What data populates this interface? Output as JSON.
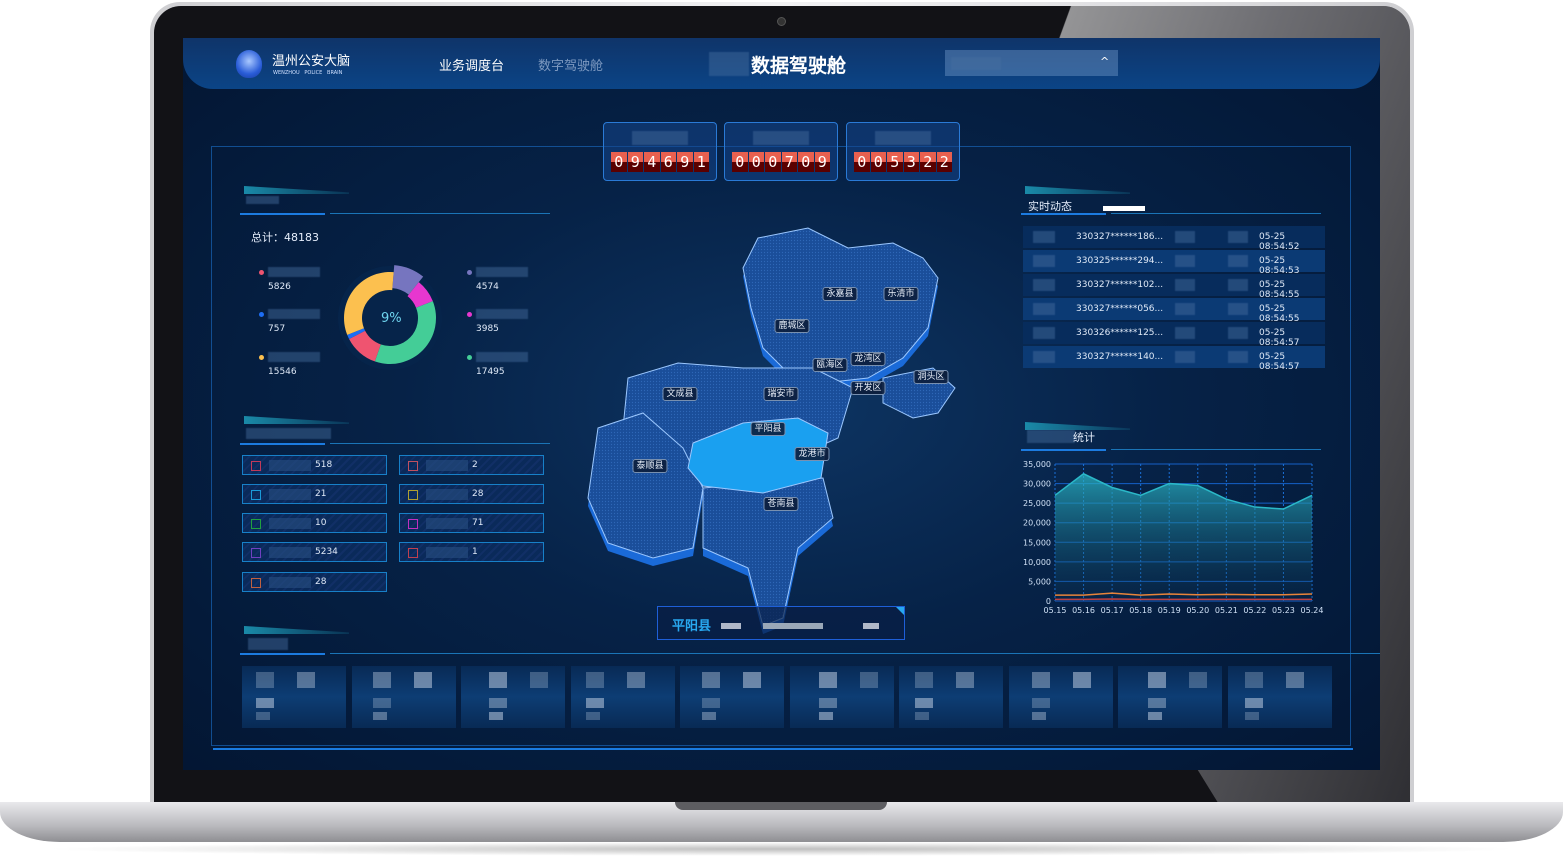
{
  "header": {
    "logo_title": "温州公安大脑",
    "logo_subtitle": "WENZHOU   POLICE   BRAIN",
    "nav": [
      {
        "label": "业务调度台",
        "active": true
      },
      {
        "label": "数字驾驶舱",
        "active": false
      }
    ],
    "page_title": "数据驾驶舱",
    "dropdown_icon": "chevron-up-icon"
  },
  "counters": [
    {
      "digits": [
        "0",
        "9",
        "4",
        "6",
        "9",
        "1"
      ]
    },
    {
      "digits": [
        "0",
        "0",
        "0",
        "7",
        "0",
        "9"
      ]
    },
    {
      "digits": [
        "0",
        "0",
        "5",
        "3",
        "2",
        "2"
      ]
    }
  ],
  "donut": {
    "total_label": "总计：48183",
    "center_label": "9%",
    "segments": [
      {
        "value": "5826",
        "color": "#ef5470"
      },
      {
        "value": "757",
        "color": "#1d6ef5"
      },
      {
        "value": "15546",
        "color": "#fcc04f"
      },
      {
        "value": "4574",
        "color": "#7675bf"
      },
      {
        "value": "3985",
        "color": "#e737cf"
      },
      {
        "value": "17495",
        "color": "#44cd97"
      }
    ]
  },
  "stats": [
    {
      "value": "518",
      "color": "#c03a5a"
    },
    {
      "value": "2",
      "color": "#c05060"
    },
    {
      "value": "21",
      "color": "#1a9ad8"
    },
    {
      "value": "28",
      "color": "#b0a030"
    },
    {
      "value": "10",
      "color": "#20a040"
    },
    {
      "value": "71",
      "color": "#c030c0"
    },
    {
      "value": "5234",
      "color": "#7040c0"
    },
    {
      "value": "1",
      "color": "#c04050"
    },
    {
      "value": "28",
      "color": "#c06040"
    }
  ],
  "realtime": {
    "title": "实时动态",
    "rows": [
      {
        "id": "330327******186...",
        "time": "05-25 08:54:52"
      },
      {
        "id": "330325******294...",
        "time": "05-25 08:54:53"
      },
      {
        "id": "330327******102...",
        "time": "05-25 08:54:55"
      },
      {
        "id": "330327******056...",
        "time": "05-25 08:54:55"
      },
      {
        "id": "330326******125...",
        "time": "05-25 08:54:57"
      },
      {
        "id": "330327******140...",
        "time": "05-25 08:54:57"
      }
    ]
  },
  "map": {
    "regions": [
      "永嘉县",
      "乐清市",
      "鹿城区",
      "瓯海区",
      "龙湾区",
      "洞头区",
      "文成县",
      "瑞安市",
      "开发区",
      "平阳县",
      "龙港市",
      "泰顺县",
      "苍南县"
    ],
    "selected": "平阳县",
    "selected_color": "#1aa0f0"
  },
  "chart_data": {
    "type": "area",
    "title": "统计",
    "x": [
      "05.15",
      "05.16",
      "05.17",
      "05.18",
      "05.19",
      "05.20",
      "05.21",
      "05.22",
      "05.23",
      "05.24"
    ],
    "ylim": [
      0,
      35000
    ],
    "yticks": [
      "0",
      "5,000",
      "10,000",
      "15,000",
      "20,000",
      "25,000",
      "30,000",
      "35,000"
    ],
    "grid": true,
    "series": [
      {
        "color": "#2bb8c8",
        "values": [
          27000,
          32500,
          29000,
          27000,
          30000,
          29500,
          26000,
          24000,
          23500,
          27000
        ]
      },
      {
        "color": "#e8843a",
        "values": [
          1500,
          1500,
          2000,
          1500,
          1800,
          1600,
          1700,
          1600,
          1600,
          1800
        ]
      },
      {
        "color": "#c04040",
        "values": [
          400,
          400,
          500,
          400,
          400,
          400,
          400,
          400,
          400,
          400
        ]
      }
    ]
  }
}
